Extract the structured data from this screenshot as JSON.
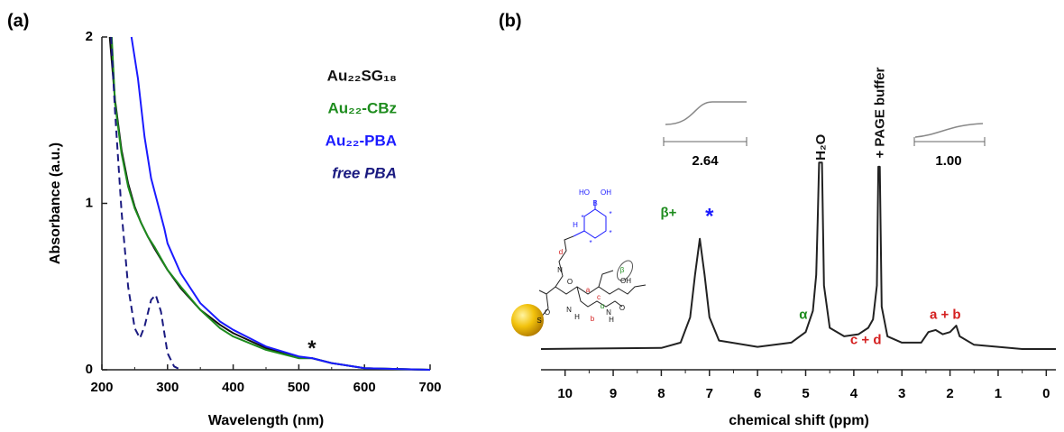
{
  "chart_data": [
    {
      "type": "line",
      "panel": "(a)",
      "xlabel": "Wavelength (nm)",
      "ylabel": "Absorbance (a.u.)",
      "xlim": [
        200,
        700
      ],
      "ylim": [
        0,
        2
      ],
      "xticks": [
        200,
        300,
        400,
        500,
        600,
        700
      ],
      "yticks": [
        0,
        1,
        2
      ],
      "legend": "upper right",
      "series": [
        {
          "name": "Au₂₂SG₁₈",
          "color": "#111111",
          "x": [
            212,
            220,
            230,
            240,
            250,
            260,
            270,
            280,
            300,
            320,
            350,
            380,
            400,
            450,
            500,
            520,
            550,
            600,
            650,
            700
          ],
          "values": [
            2,
            1.62,
            1.32,
            1.12,
            0.98,
            0.88,
            0.8,
            0.73,
            0.6,
            0.49,
            0.36,
            0.27,
            0.22,
            0.13,
            0.07,
            0.07,
            0.04,
            0.01,
            0.005,
            0
          ]
        },
        {
          "name": "Au₂₂-CBz",
          "color": "#1e8c1e",
          "x": [
            215,
            220,
            230,
            240,
            250,
            260,
            270,
            280,
            300,
            320,
            350,
            380,
            400,
            450,
            500,
            520,
            550,
            600,
            650,
            700
          ],
          "values": [
            2,
            1.6,
            1.3,
            1.1,
            0.97,
            0.88,
            0.8,
            0.74,
            0.6,
            0.5,
            0.36,
            0.25,
            0.2,
            0.12,
            0.07,
            0.07,
            0.04,
            0.01,
            0.005,
            0
          ]
        },
        {
          "name": "Au₂₂-PBA",
          "color": "#1a1aff",
          "x": [
            245,
            255,
            265,
            275,
            285,
            295,
            300,
            320,
            350,
            380,
            400,
            450,
            500,
            520,
            550,
            600,
            650,
            700
          ],
          "values": [
            2,
            1.75,
            1.4,
            1.15,
            1.0,
            0.85,
            0.76,
            0.58,
            0.4,
            0.29,
            0.24,
            0.14,
            0.08,
            0.07,
            0.04,
            0.01,
            0.005,
            0
          ]
        },
        {
          "name": "free PBA",
          "color": "#1a1a80",
          "dash": true,
          "italic": true,
          "x": [
            214,
            220,
            230,
            240,
            250,
            258,
            265,
            275,
            282,
            290,
            300,
            310,
            320
          ],
          "values": [
            2,
            1.55,
            0.95,
            0.5,
            0.25,
            0.19,
            0.26,
            0.42,
            0.45,
            0.35,
            0.1,
            0.02,
            0
          ]
        }
      ],
      "annotations": [
        {
          "text": "*",
          "x": 520,
          "y": 0.12,
          "color": "#111111"
        }
      ]
    },
    {
      "type": "line",
      "panel": "(b)",
      "xlabel": "chemical shift (ppm)",
      "xlim": [
        10.5,
        -0.2
      ],
      "ylim": [
        0,
        100
      ],
      "xticks": [
        10,
        9,
        8,
        7,
        6,
        5,
        4,
        3,
        2,
        1,
        0
      ],
      "series": [
        {
          "color": "#222222",
          "x": [
            10.5,
            8,
            7.6,
            7.4,
            7.3,
            7.2,
            7.1,
            7.0,
            6.8,
            6.0,
            5.3,
            5.0,
            4.85,
            4.78,
            4.75,
            4.72,
            4.66,
            4.62,
            4.5,
            4.2,
            3.9,
            3.7,
            3.6,
            3.52,
            3.49,
            3.46,
            3.42,
            3.3,
            3.0,
            2.6,
            2.45,
            2.3,
            2.15,
            2.0,
            1.87,
            1.8,
            1.5,
            1.0,
            0.5,
            -0.2
          ],
          "values": [
            0,
            0.5,
            3,
            15,
            35,
            52,
            35,
            15,
            4,
            1,
            3,
            8,
            18,
            35,
            60,
            88,
            88,
            30,
            10,
            6,
            7,
            10,
            14,
            30,
            86,
            86,
            20,
            6,
            3,
            3,
            8,
            9,
            7,
            8,
            11,
            6,
            2,
            1,
            0,
            0
          ]
        }
      ],
      "annotations": [
        {
          "text": "β+",
          "x": 7.85,
          "y": 64,
          "color": "#1e8c1e"
        },
        {
          "text": "*",
          "x": 7.0,
          "y": 62,
          "color": "#1a1aff"
        },
        {
          "text": "α",
          "x": 5.05,
          "y": 16,
          "color": "#1e8c1e"
        },
        {
          "text": "H₂O",
          "x": 4.67,
          "y": 89,
          "color": "#111111",
          "rotate": true
        },
        {
          "text": "+ PAGE buffer",
          "x": 3.44,
          "y": 90,
          "color": "#111111",
          "rotate": true
        },
        {
          "text": "c + d",
          "x": 3.75,
          "y": 4,
          "color": "#d42020"
        },
        {
          "text": "a + b",
          "x": 2.1,
          "y": 16,
          "color": "#d42020"
        }
      ],
      "integrals": [
        "2.64",
        "1.00"
      ],
      "structure_labels": [
        {
          "text": "HO",
          "color": "#1a1aff"
        },
        {
          "text": "B",
          "color": "#1a1aff"
        },
        {
          "text": "OH",
          "color": "#1a1aff"
        },
        {
          "text": "H",
          "color": "#1a1aff"
        },
        {
          "text": "*",
          "color": "#1a1aff"
        },
        {
          "text": "*",
          "color": "#1a1aff"
        },
        {
          "text": "*",
          "color": "#1a1aff"
        },
        {
          "text": "*",
          "color": "#1a1aff"
        },
        {
          "text": "d",
          "color": "#d42020"
        },
        {
          "text": "a",
          "color": "#d42020"
        },
        {
          "text": "c",
          "color": "#d42020"
        },
        {
          "text": "b",
          "color": "#d42020"
        },
        {
          "text": "β",
          "color": "#1e8c1e"
        },
        {
          "text": "α",
          "color": "#1e8c1e"
        },
        {
          "text": "O",
          "color": "#111111"
        },
        {
          "text": "N",
          "color": "#111111"
        },
        {
          "text": "OH",
          "color": "#111111"
        },
        {
          "text": "O",
          "color": "#111111"
        },
        {
          "text": "N",
          "color": "#111111"
        },
        {
          "text": "H",
          "color": "#111111"
        },
        {
          "text": "N",
          "color": "#111111"
        },
        {
          "text": "H",
          "color": "#111111"
        },
        {
          "text": "O",
          "color": "#111111"
        },
        {
          "text": "S",
          "color": "#111111"
        }
      ]
    }
  ]
}
